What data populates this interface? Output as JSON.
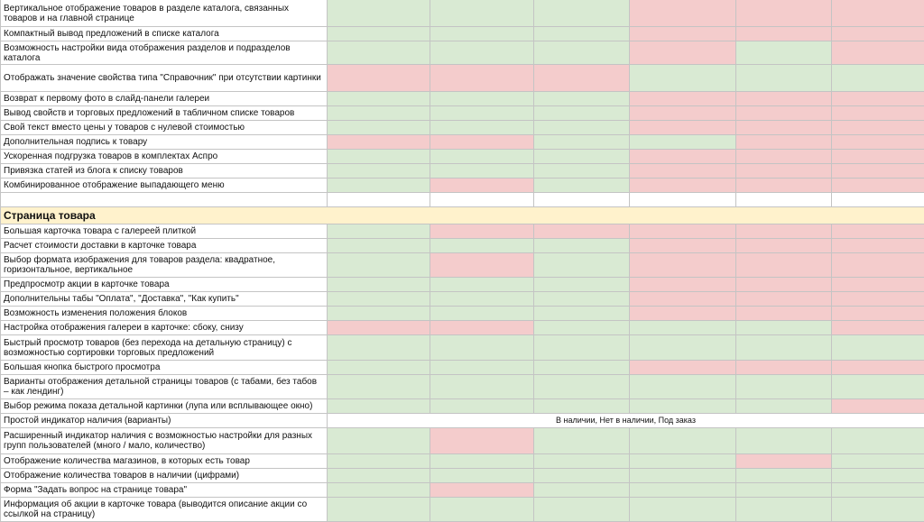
{
  "colors": {
    "green": "#d9ead3",
    "red": "#f4cccc",
    "section": "#fff2cc",
    "border": "#c4c4c4"
  },
  "rows": [
    {
      "label": "Вертикальное отображение товаров в разделе каталога, связанных товаров и на главной странице",
      "cells": [
        "g",
        "g",
        "g",
        "r",
        "r",
        "r"
      ]
    },
    {
      "label": "Компактный вывод предложений в списке каталога",
      "cells": [
        "g",
        "g",
        "g",
        "r",
        "r",
        "r"
      ]
    },
    {
      "label": "Возможность настройки вида отображения разделов и подразделов каталога",
      "cells": [
        "g",
        "g",
        "g",
        "r",
        "g",
        "r"
      ]
    },
    {
      "label": "Отображать значение свойства типа \"Справочник\" при отсутствии картинки",
      "cells": [
        "r",
        "r",
        "r",
        "g",
        "g",
        "g"
      ]
    },
    {
      "label": "Возврат к первому фото в слайд-панели галереи",
      "cells": [
        "g",
        "g",
        "g",
        "r",
        "r",
        "r"
      ]
    },
    {
      "label": "Вывод свойств и торговых предложений в табличном списке товаров",
      "cells": [
        "g",
        "g",
        "g",
        "r",
        "r",
        "r"
      ]
    },
    {
      "label": "Свой текст вместо цены у товаров с нулевой стоимостью",
      "cells": [
        "g",
        "g",
        "g",
        "r",
        "r",
        "r"
      ]
    },
    {
      "label": "Дополнительная подпись к товару",
      "cells": [
        "r",
        "r",
        "g",
        "g",
        "r",
        "r"
      ]
    },
    {
      "label": "Ускоренная подгрузка товаров в комплектах Аспро",
      "cells": [
        "g",
        "g",
        "g",
        "r",
        "r",
        "r"
      ]
    },
    {
      "label": "Привязка статей из блога к списку товаров",
      "cells": [
        "g",
        "g",
        "g",
        "r",
        "r",
        "r"
      ]
    },
    {
      "label": "Комбинированное отображение выпадающего меню",
      "cells": [
        "g",
        "r",
        "g",
        "r",
        "r",
        "r"
      ]
    },
    {
      "label": "",
      "cells": [
        "w",
        "w",
        "w",
        "w",
        "w",
        "w"
      ]
    },
    {
      "section": true,
      "label": "Страница товара"
    },
    {
      "label": "Большая карточка товара с галереей плиткой",
      "cells": [
        "g",
        "r",
        "r",
        "r",
        "r",
        "r"
      ]
    },
    {
      "label": "Расчет стоимости доставки в карточке товара",
      "cells": [
        "g",
        "g",
        "g",
        "r",
        "r",
        "r"
      ]
    },
    {
      "label": "Выбор формата изображения для товаров раздела: квадратное, горизонтальное, вертикальное",
      "cells": [
        "g",
        "r",
        "g",
        "r",
        "r",
        "r"
      ]
    },
    {
      "label": "Предпросмотр акции в карточке товара",
      "cells": [
        "g",
        "g",
        "g",
        "r",
        "r",
        "r"
      ]
    },
    {
      "label": "Дополнительны табы \"Оплата\", \"Доставка\", \"Как купить\"",
      "cells": [
        "g",
        "g",
        "g",
        "r",
        "r",
        "r"
      ]
    },
    {
      "label": "Возможность изменения положения блоков",
      "cells": [
        "g",
        "g",
        "g",
        "r",
        "r",
        "r"
      ]
    },
    {
      "label": "Настройка отображения галереи в карточке: сбоку, снизу",
      "cells": [
        "r",
        "r",
        "g",
        "g",
        "g",
        "r"
      ]
    },
    {
      "label": "Быстрый просмотр товаров (без перехода на детальную страницу) с возможностью сортировки торговых предложений",
      "cells": [
        "g",
        "g",
        "g",
        "g",
        "g",
        "g"
      ]
    },
    {
      "label": "Большая кнопка быстрого просмотра",
      "cells": [
        "g",
        "g",
        "g",
        "r",
        "r",
        "r"
      ]
    },
    {
      "label": "Варианты отображения детальной страницы товаров (с табами, без табов – как лендинг)",
      "cells": [
        "g",
        "g",
        "g",
        "g",
        "g",
        "g"
      ]
    },
    {
      "label": "Выбор режима показа детальной картинки (лупа или всплывающее окно)",
      "cells": [
        "g",
        "g",
        "g",
        "g",
        "g",
        "r"
      ]
    },
    {
      "label": "Простой индикатор наличия (варианты)",
      "note": "В наличии, Нет в наличии,  Под заказ"
    },
    {
      "label": "Расширенный индикатор наличия с возможностью настройки для разных групп пользователей (много / мало, количество)",
      "cells": [
        "g",
        "r",
        "g",
        "g",
        "g",
        "g"
      ]
    },
    {
      "label": "Отображение количества магазинов, в которых есть товар",
      "cells": [
        "g",
        "g",
        "g",
        "g",
        "r",
        "g"
      ]
    },
    {
      "label": "Отображение количества товаров в наличии (цифрами)",
      "cells": [
        "g",
        "g",
        "g",
        "g",
        "g",
        "g"
      ]
    },
    {
      "label": "Форма \"Задать вопрос на странице товара\"",
      "cells": [
        "g",
        "r",
        "g",
        "g",
        "g",
        "g"
      ]
    },
    {
      "label": "Информация об акции в карточке товара (выводится описание акции со ссылкой на страницу)",
      "cells": [
        "g",
        "g",
        "g",
        "g",
        "g",
        "g"
      ]
    }
  ]
}
